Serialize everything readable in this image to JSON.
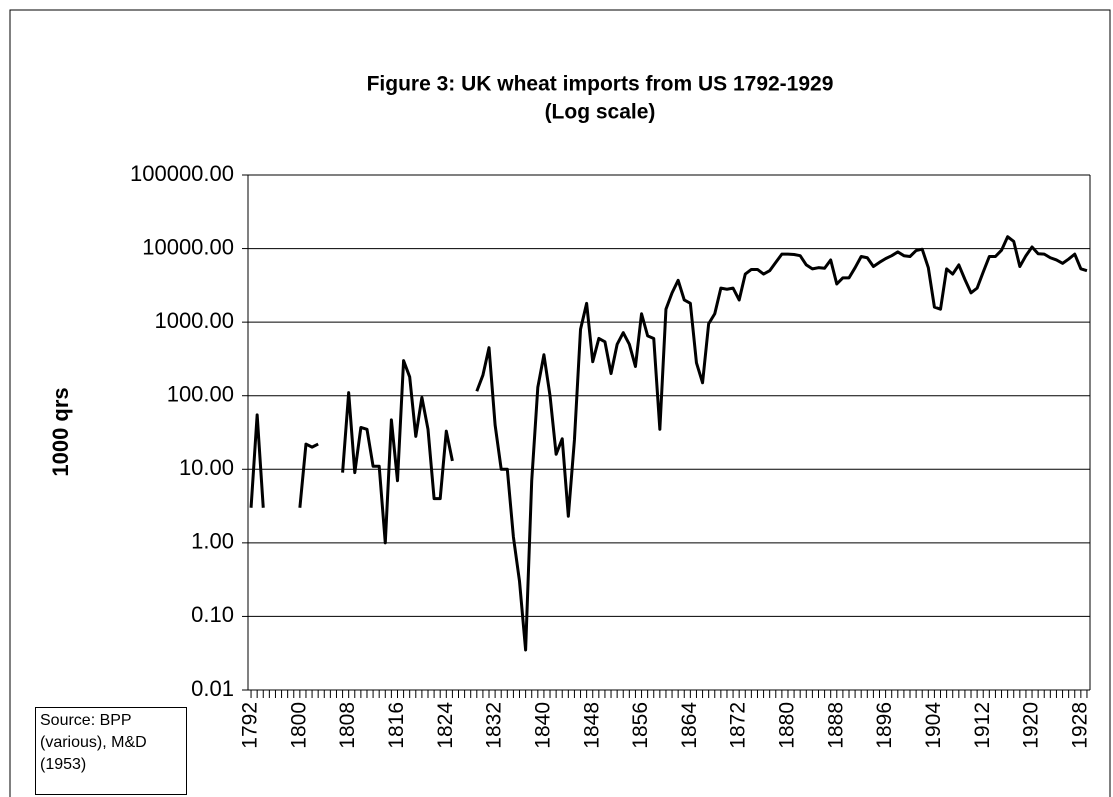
{
  "chart_data": {
    "type": "line",
    "title": "Figure 3: UK wheat imports from US 1792-1929",
    "subtitle": "(Log scale)",
    "y_label": "1000 qrs",
    "source": "Source: BPP (various), M&D (1953)",
    "x": [
      1792,
      1793,
      1794,
      1795,
      1796,
      1797,
      1798,
      1799,
      1800,
      1801,
      1802,
      1803,
      1804,
      1805,
      1806,
      1807,
      1808,
      1809,
      1810,
      1811,
      1812,
      1813,
      1814,
      1815,
      1816,
      1817,
      1818,
      1819,
      1820,
      1821,
      1822,
      1823,
      1824,
      1825,
      1826,
      1827,
      1828,
      1829,
      1830,
      1831,
      1832,
      1833,
      1834,
      1835,
      1836,
      1837,
      1838,
      1839,
      1840,
      1841,
      1842,
      1843,
      1844,
      1845,
      1846,
      1847,
      1848,
      1849,
      1850,
      1851,
      1852,
      1853,
      1854,
      1855,
      1856,
      1857,
      1858,
      1859,
      1860,
      1861,
      1862,
      1863,
      1864,
      1865,
      1866,
      1867,
      1868,
      1869,
      1870,
      1871,
      1872,
      1873,
      1874,
      1875,
      1876,
      1877,
      1878,
      1879,
      1880,
      1881,
      1882,
      1883,
      1884,
      1885,
      1886,
      1887,
      1888,
      1889,
      1890,
      1891,
      1892,
      1893,
      1894,
      1895,
      1896,
      1897,
      1898,
      1899,
      1900,
      1901,
      1902,
      1903,
      1904,
      1905,
      1906,
      1907,
      1908,
      1909,
      1910,
      1911,
      1912,
      1913,
      1914,
      1915,
      1916,
      1917,
      1918,
      1919,
      1920,
      1921,
      1922,
      1923,
      1924,
      1925,
      1926,
      1927,
      1928,
      1929
    ],
    "series": [
      {
        "name": "UK wheat imports from US",
        "color": "#000000",
        "values": [
          3,
          55,
          3,
          null,
          null,
          null,
          null,
          null,
          3,
          22,
          20,
          22,
          null,
          null,
          null,
          9,
          110,
          9,
          37,
          35,
          11,
          11,
          1,
          47,
          7,
          300,
          180,
          28,
          95,
          35,
          4,
          4,
          33,
          13,
          null,
          null,
          null,
          115,
          190,
          450,
          40,
          10,
          10,
          1.2,
          0.3,
          0.035,
          7,
          130,
          360,
          100,
          16,
          26,
          2.3,
          25,
          800,
          1800,
          290,
          600,
          540,
          200,
          500,
          720,
          500,
          250,
          1300,
          650,
          600,
          35,
          1500,
          2500,
          3700,
          2000,
          1800,
          280,
          150,
          950,
          1300,
          2900,
          2800,
          2900,
          2000,
          4500,
          5200,
          5200,
          4500,
          5000,
          6500,
          8400,
          8400,
          8300,
          8000,
          6000,
          5300,
          5500,
          5400,
          7000,
          3300,
          4000,
          4000,
          5500,
          7800,
          7500,
          5700,
          6500,
          7300,
          8000,
          9000,
          8000,
          7800,
          9400,
          9800,
          5500,
          1600,
          1500,
          5300,
          4500,
          6000,
          3800,
          2500,
          2900,
          4800,
          7800,
          7800,
          9500,
          14500,
          12500,
          5700,
          8000,
          10500,
          8500,
          8400,
          7500,
          7000,
          6300,
          7200,
          8400,
          5300,
          5000
        ]
      }
    ],
    "xlim": [
      1791.5,
      1929.5
    ],
    "xticks": [
      1792,
      1800,
      1808,
      1816,
      1824,
      1832,
      1840,
      1848,
      1856,
      1864,
      1872,
      1880,
      1888,
      1896,
      1904,
      1912,
      1920,
      1928
    ],
    "ylim": [
      0.01,
      100000
    ],
    "yticks": [
      0.01,
      {
        "value": 0.1,
        "label": "0.10"
      },
      {
        "value": 1,
        "label": "1.00"
      },
      {
        "value": 10,
        "label": "10.00"
      },
      {
        "value": 100,
        "label": "100.00"
      },
      {
        "value": 1000,
        "label": "1000.00"
      },
      {
        "value": 10000,
        "label": "10000.00"
      },
      {
        "value": 100000,
        "label": "100000.00"
      }
    ],
    "log_scale": true,
    "grid": true
  }
}
